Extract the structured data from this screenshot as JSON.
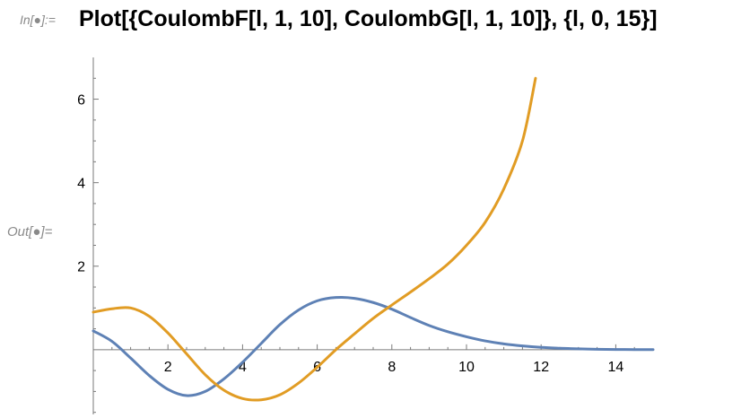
{
  "cell": {
    "in_label": "In[●]:=",
    "out_label": "Out[●]=",
    "input": "Plot[{CoulombF[l, 1, 10], CoulombG[l, 1, 10]}, {l, 0, 15}]"
  },
  "colors": {
    "series_f": "#5E81B5",
    "series_g": "#E19C24",
    "axis": "#7a7a7a"
  },
  "chart_data": {
    "type": "line",
    "title": "",
    "xlabel": "",
    "ylabel": "",
    "xlim": [
      0,
      15
    ],
    "ylim": [
      -1.55,
      7.0
    ],
    "x_ticks": [
      2,
      4,
      6,
      8,
      10,
      12,
      14
    ],
    "y_ticks": [
      2,
      4,
      6
    ],
    "grid": false,
    "series": [
      {
        "points": [
          [
            0,
            0.45
          ],
          [
            0.5,
            0.2
          ],
          [
            1,
            -0.2
          ],
          [
            1.5,
            -0.62
          ],
          [
            2,
            -0.95
          ],
          [
            2.5,
            -1.1
          ],
          [
            3,
            -1.0
          ],
          [
            3.5,
            -0.7
          ],
          [
            4,
            -0.3
          ],
          [
            4.5,
            0.15
          ],
          [
            5,
            0.6
          ],
          [
            5.5,
            0.95
          ],
          [
            6,
            1.17
          ],
          [
            6.5,
            1.25
          ],
          [
            7,
            1.23
          ],
          [
            7.5,
            1.13
          ],
          [
            8,
            0.97
          ],
          [
            8.5,
            0.77
          ],
          [
            9,
            0.58
          ],
          [
            9.5,
            0.43
          ],
          [
            10,
            0.31
          ],
          [
            10.5,
            0.21
          ],
          [
            11,
            0.14
          ],
          [
            11.5,
            0.09
          ],
          [
            12,
            0.055
          ],
          [
            12.5,
            0.035
          ],
          [
            13,
            0.02
          ],
          [
            13.5,
            0.01
          ],
          [
            14,
            0.006
          ],
          [
            14.5,
            0.003
          ],
          [
            15,
            0.002
          ]
        ]
      },
      {
        "points": [
          [
            0,
            0.9
          ],
          [
            0.5,
            0.98
          ],
          [
            1,
            1.0
          ],
          [
            1.5,
            0.8
          ],
          [
            2,
            0.4
          ],
          [
            2.5,
            -0.1
          ],
          [
            3,
            -0.6
          ],
          [
            3.5,
            -0.97
          ],
          [
            4,
            -1.17
          ],
          [
            4.5,
            -1.2
          ],
          [
            5,
            -1.08
          ],
          [
            5.5,
            -0.8
          ],
          [
            6,
            -0.42
          ],
          [
            6.5,
            0.0
          ],
          [
            7,
            0.38
          ],
          [
            7.5,
            0.75
          ],
          [
            8,
            1.07
          ],
          [
            8.5,
            1.38
          ],
          [
            9,
            1.7
          ],
          [
            9.5,
            2.05
          ],
          [
            10,
            2.5
          ],
          [
            10.5,
            3.05
          ],
          [
            11,
            3.85
          ],
          [
            11.5,
            5.0
          ],
          [
            11.85,
            6.5
          ]
        ]
      }
    ]
  }
}
